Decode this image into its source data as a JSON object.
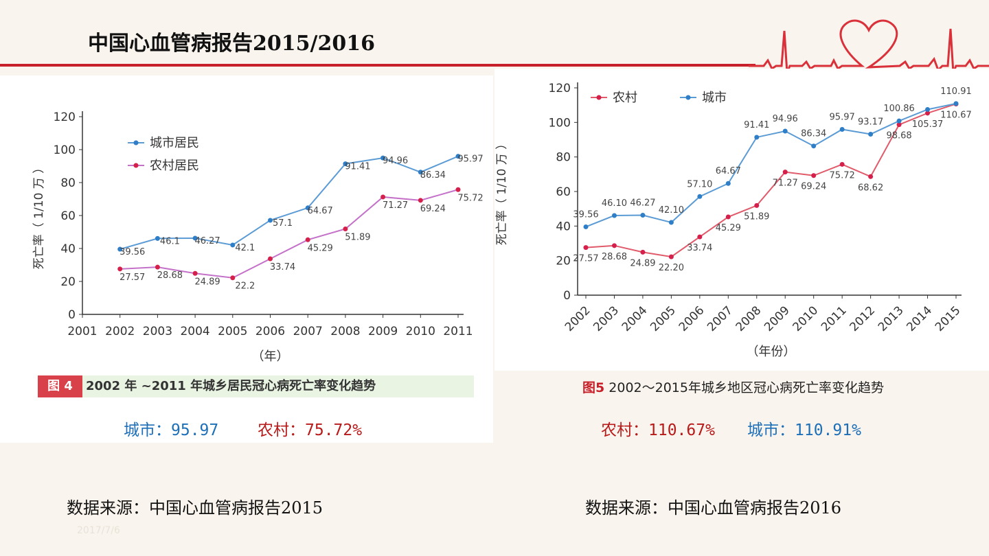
{
  "header": {
    "title": "中国心血管病报告2015/2016"
  },
  "chart_data": [
    {
      "type": "line",
      "id": "fig4",
      "xlabel": "（年）",
      "ylabel": "死亡率（ 1/10 万 ）",
      "ylim": [
        0,
        120
      ],
      "yticks": [
        "0",
        "20",
        "40",
        "60",
        "80",
        "100",
        "120"
      ],
      "categories": [
        "2001",
        "2002",
        "2003",
        "2004",
        "2005",
        "2006",
        "2007",
        "2008",
        "2009",
        "2010",
        "2011"
      ],
      "series": [
        {
          "name": "城市居民",
          "color": "#5b9bd5",
          "x": [
            "2002",
            "2003",
            "2004",
            "2005",
            "2006",
            "2007",
            "2008",
            "2009",
            "2010",
            "2011"
          ],
          "values": [
            39.56,
            46.1,
            46.27,
            42.1,
            57.1,
            64.67,
            91.41,
            94.96,
            86.34,
            95.97
          ],
          "labels": [
            "39.56",
            "46.1",
            "46.27",
            "42.1",
            "57.1",
            "64.67",
            "91.41",
            "94.96",
            "86.34",
            "95.97"
          ]
        },
        {
          "name": "农村居民",
          "color": "#c471c9",
          "x": [
            "2002",
            "2003",
            "2004",
            "2005",
            "2006",
            "2007",
            "2008",
            "2009",
            "2010",
            "2011"
          ],
          "values": [
            27.57,
            28.68,
            24.89,
            22.2,
            33.74,
            45.29,
            51.89,
            71.27,
            69.24,
            75.72
          ],
          "labels": [
            "27.57",
            "28.68",
            "24.89",
            "22.2",
            "33.74",
            "45.29",
            "51.89",
            "71.27",
            "69.24",
            "75.72"
          ]
        }
      ]
    },
    {
      "type": "line",
      "id": "fig5",
      "xlabel": "（年份）",
      "ylabel": "死亡率（ 1/10 万 ）",
      "ylim": [
        0,
        120
      ],
      "yticks": [
        "0",
        "20",
        "40",
        "60",
        "80",
        "100",
        "120"
      ],
      "categories": [
        "2002",
        "2003",
        "2004",
        "2005",
        "2006",
        "2007",
        "2008",
        "2009",
        "2010",
        "2011",
        "2012",
        "2013",
        "2014",
        "2015"
      ],
      "series": [
        {
          "name": "农村",
          "color": "#e05a6a",
          "x": [
            "2002",
            "2003",
            "2004",
            "2005",
            "2006",
            "2007",
            "2008",
            "2009",
            "2010",
            "2011",
            "2012",
            "2013",
            "2014",
            "2015"
          ],
          "values": [
            27.57,
            28.68,
            24.89,
            22.2,
            33.74,
            45.29,
            51.89,
            71.27,
            69.24,
            75.72,
            68.62,
            98.68,
            105.37,
            110.67
          ],
          "labels": [
            "27.57",
            "28.68",
            "24.89",
            "22.20",
            "33.74",
            "45.29",
            "51.89",
            "71.27",
            "69.24",
            "75.72",
            "68.62",
            "98.68",
            "105.37",
            "110.67"
          ]
        },
        {
          "name": "城市",
          "color": "#5b9bd5",
          "x": [
            "2002",
            "2003",
            "2004",
            "2005",
            "2006",
            "2007",
            "2008",
            "2009",
            "2010",
            "2011",
            "2012",
            "2013",
            "2014",
            "2015"
          ],
          "values": [
            39.56,
            46.1,
            46.27,
            42.1,
            57.1,
            64.67,
            91.41,
            94.96,
            86.34,
            95.97,
            93.17,
            100.86,
            107.5,
            110.91
          ],
          "labels": [
            "39.56",
            "46.10",
            "46.27",
            "42.10",
            "57.10",
            "64.67",
            "91.41",
            "94.96",
            "86.34",
            "95.97",
            "93.17",
            "100.86",
            "",
            "110.91"
          ]
        }
      ]
    }
  ],
  "captions": {
    "fig4_tag": "图 4",
    "fig4_text": "2002 年 ~2011 年城乡居民冠心病死亡率变化趋势",
    "fig5_tag": "图5",
    "fig5_text": " 2002～2015年城乡地区冠心病死亡率变化趋势"
  },
  "values": {
    "left_city": "城市：95.97",
    "left_rural": "农村：75.72%",
    "right_rural": "农村：110.67%",
    "right_city": "城市：110.91%"
  },
  "sources": {
    "left": "数据来源：中国心血管病报告2015",
    "right": "数据来源：中国心血管病报告2016"
  },
  "footer": {
    "date": "2017/7/6"
  },
  "colors": {
    "accent": "#c8202a",
    "city": "#1d6fb8",
    "rural": "#b81a1a"
  }
}
